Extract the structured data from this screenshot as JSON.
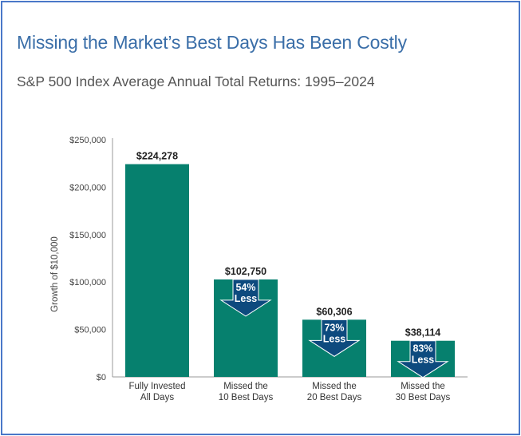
{
  "title": "Missing the Market’s Best Days Has Been Costly",
  "subtitle": "S&P 500 Index Average Annual Total Returns: 1995–2024",
  "chart_data": {
    "type": "bar",
    "categories": [
      [
        "Fully Invested",
        "All Days"
      ],
      [
        "Missed the",
        "10 Best Days"
      ],
      [
        "Missed the",
        "20 Best Days"
      ],
      [
        "Missed the",
        "30 Best Days"
      ]
    ],
    "values": [
      224278,
      102750,
      60306,
      38114
    ],
    "value_labels": [
      "$224,278",
      "$102,750",
      "$60,306",
      "$38,114"
    ],
    "annotations": [
      null,
      [
        "54%",
        "Less"
      ],
      [
        "73%",
        "Less"
      ],
      [
        "83%",
        "Less"
      ]
    ],
    "ylabel": "Growth of $10,000",
    "xlabel": "",
    "ylim": [
      0,
      250000
    ],
    "yticks": [
      0,
      50000,
      100000,
      150000,
      200000,
      250000
    ],
    "ytick_labels": [
      "$0",
      "$50,000",
      "$100,000",
      "$150,000",
      "$200,000",
      "$250,000"
    ],
    "grid": false,
    "colors": {
      "bar": "#06806e",
      "arrow": "#0d4a7e",
      "arrow_stroke": "#ffffff"
    }
  }
}
